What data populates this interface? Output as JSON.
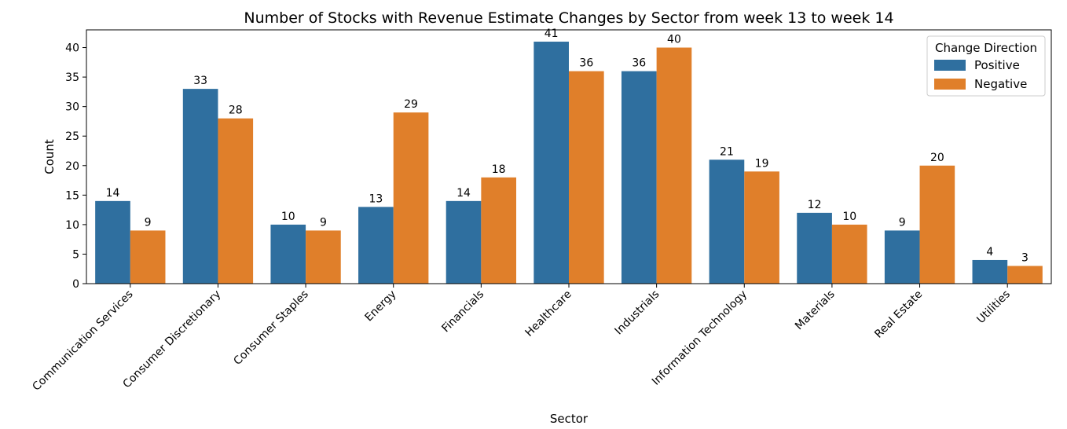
{
  "chart_data": {
    "type": "bar",
    "title": "Number of Stocks with Revenue Estimate Changes by Sector from week 13 to week 14",
    "xlabel": "Sector",
    "ylabel": "Count",
    "ylim": [
      0,
      43
    ],
    "yticks": [
      0,
      5,
      10,
      15,
      20,
      25,
      30,
      35,
      40
    ],
    "grid": false,
    "categories": [
      "Communication Services",
      "Consumer Discretionary",
      "Consumer Staples",
      "Energy",
      "Financials",
      "Healthcare",
      "Industrials",
      "Information Technology",
      "Materials",
      "Real Estate",
      "Utilities"
    ],
    "series": [
      {
        "name": "Positive",
        "color": "#2f6f9f",
        "values": [
          14,
          33,
          10,
          13,
          14,
          41,
          36,
          21,
          12,
          9,
          4
        ]
      },
      {
        "name": "Negative",
        "color": "#e07f2a",
        "values": [
          9,
          28,
          9,
          29,
          18,
          36,
          40,
          19,
          10,
          20,
          3
        ]
      }
    ],
    "legend": {
      "title": "Change Direction",
      "placement": "top-right"
    }
  }
}
